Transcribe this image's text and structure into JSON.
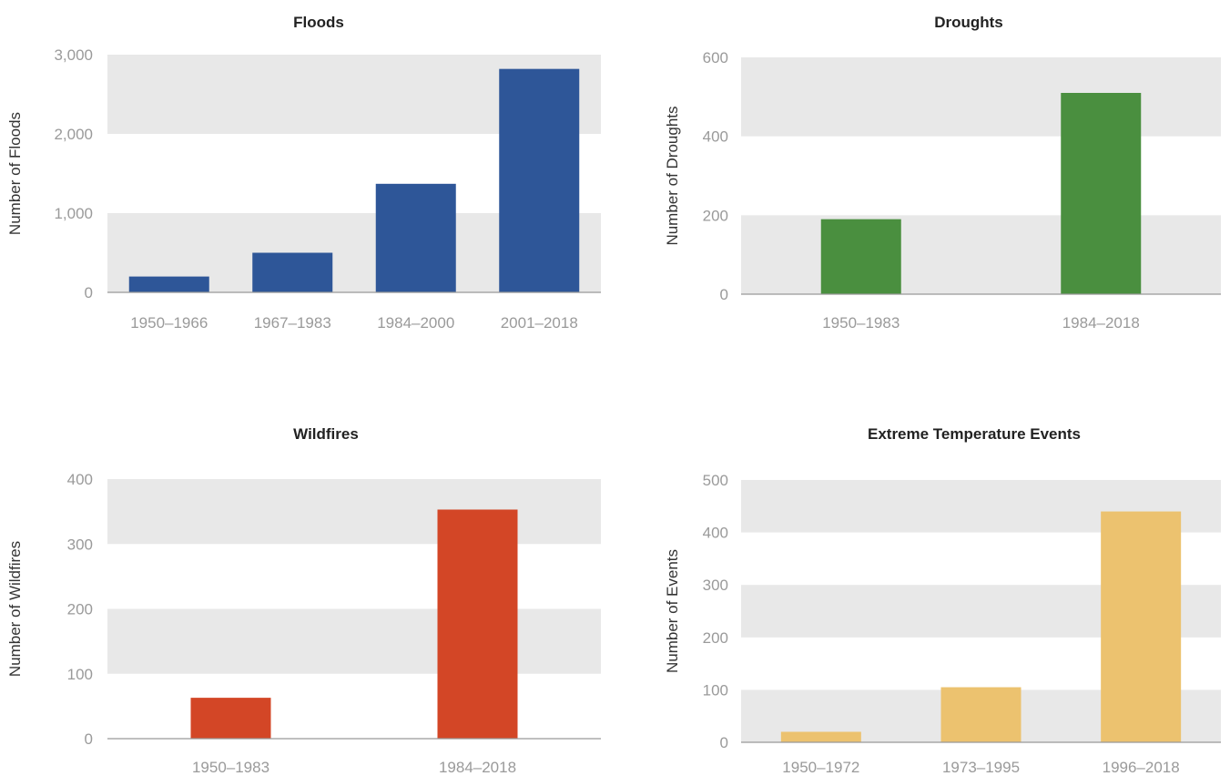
{
  "chart_data": [
    {
      "type": "bar",
      "title": "Floods",
      "ylabel": "Number of Floods",
      "xlabel": "",
      "categories": [
        "1950–1966",
        "1967–1983",
        "1984–2000",
        "2001–2018"
      ],
      "values": [
        200,
        500,
        1370,
        2820
      ],
      "ylim": [
        0,
        3000
      ],
      "yticks": [
        0,
        1000,
        2000,
        3000
      ],
      "ytick_labels": [
        "0",
        "1,000",
        "2,000",
        "3,000"
      ],
      "color": "#2e5698",
      "grid": "alternating bands",
      "legend": "none"
    },
    {
      "type": "bar",
      "title": "Droughts",
      "ylabel": "Number of Droughts",
      "xlabel": "",
      "categories": [
        "1950–1983",
        "1984–2018"
      ],
      "values": [
        190,
        510
      ],
      "ylim": [
        0,
        600
      ],
      "yticks": [
        0,
        200,
        400,
        600
      ],
      "ytick_labels": [
        "0",
        "200",
        "400",
        "600"
      ],
      "color": "#4a8f3f",
      "grid": "alternating bands",
      "legend": "none"
    },
    {
      "type": "bar",
      "title": "Wildfires",
      "ylabel": "Number of Wildfires",
      "xlabel": "",
      "categories": [
        "1950–1983",
        "1984–2018"
      ],
      "values": [
        63,
        353
      ],
      "ylim": [
        0,
        400
      ],
      "yticks": [
        0,
        100,
        200,
        300,
        400
      ],
      "ytick_labels": [
        "0",
        "100",
        "200",
        "300",
        "400"
      ],
      "color": "#d34626",
      "grid": "alternating bands",
      "legend": "none"
    },
    {
      "type": "bar",
      "title": "Extreme Temperature Events",
      "ylabel": "Number of Events",
      "xlabel": "",
      "categories": [
        "1950–1972",
        "1973–1995",
        "1996–2018"
      ],
      "values": [
        20,
        105,
        440
      ],
      "ylim": [
        0,
        500
      ],
      "yticks": [
        0,
        100,
        200,
        300,
        400,
        500
      ],
      "ytick_labels": [
        "0",
        "100",
        "200",
        "300",
        "400",
        "500"
      ],
      "color": "#ecc26f",
      "grid": "alternating bands",
      "legend": "none"
    }
  ]
}
